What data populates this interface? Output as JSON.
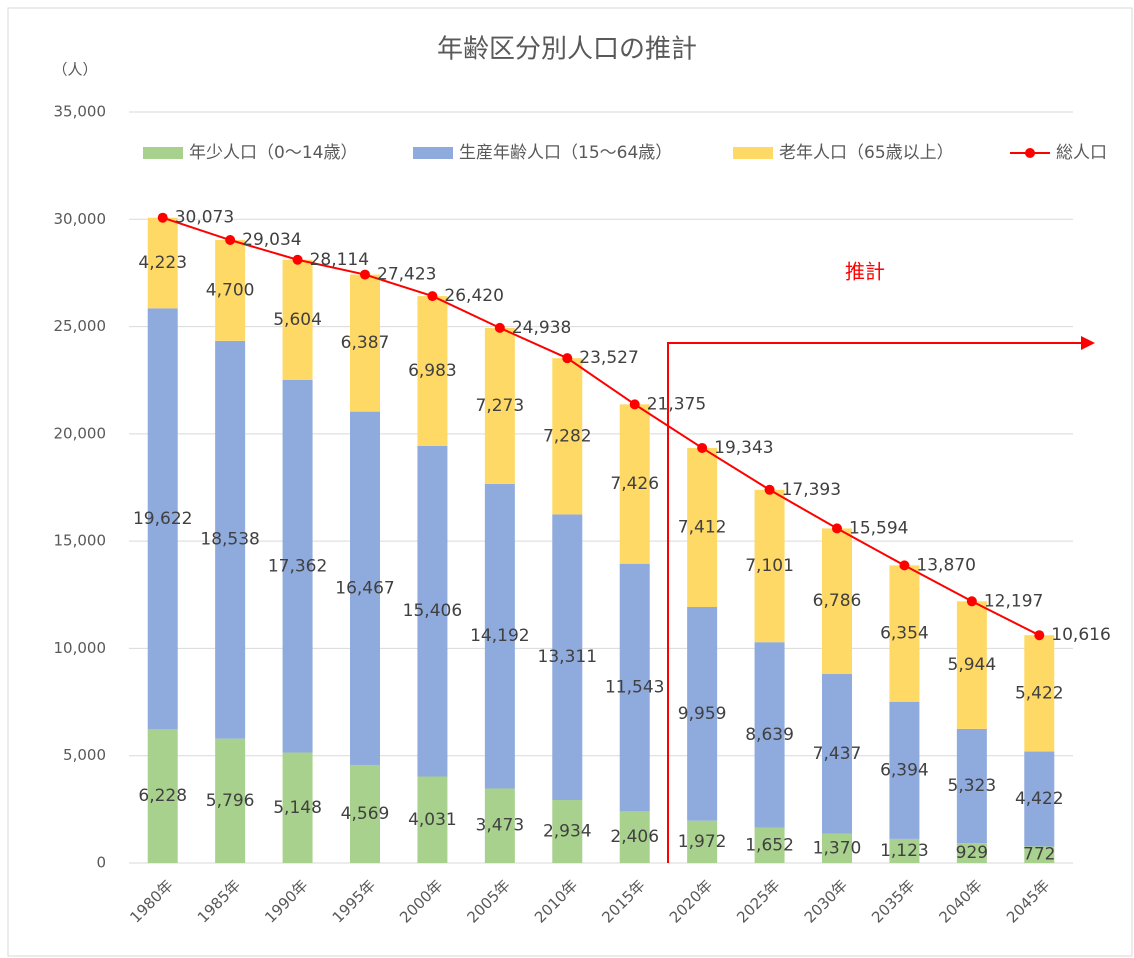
{
  "chart_data": {
    "type": "bar",
    "stacked": true,
    "title": "年齢区分別人口の推計",
    "y_label": "（人）",
    "annotation": "推計",
    "categories": [
      "1980年",
      "1985年",
      "1990年",
      "1995年",
      "2000年",
      "2005年",
      "2010年",
      "2015年",
      "2020年",
      "2025年",
      "2030年",
      "2035年",
      "2040年",
      "2045年"
    ],
    "ylim": [
      0,
      35000
    ],
    "yticks": [
      0,
      {
        "value": 5000,
        "label": "5,000"
      },
      {
        "value": 10000,
        "label": "10,000"
      },
      {
        "value": 15000,
        "label": "15,000"
      },
      {
        "value": 20000,
        "label": "20,000"
      },
      {
        "value": 25000,
        "label": "25,000"
      },
      {
        "value": 30000,
        "label": "30,000"
      },
      {
        "value": 35000,
        "label": "35,000"
      }
    ],
    "grid": true,
    "legend": "top",
    "series": [
      {
        "name": "年少人口（0～14歳）",
        "type": "bar",
        "color": "#a9d18e",
        "values": [
          6228,
          5796,
          5148,
          4569,
          4031,
          3473,
          2934,
          2406,
          1972,
          1652,
          1370,
          1123,
          929,
          772
        ],
        "value_labels": [
          "6,228",
          "5,796",
          "5,148",
          "4,569",
          "4,031",
          "3,473",
          "2,934",
          "2,406",
          "1,972",
          "1,652",
          "1,370",
          "1,123",
          "929",
          "772"
        ]
      },
      {
        "name": "生産年齢人口（15～64歳）",
        "type": "bar",
        "color": "#8faadc",
        "values": [
          19622,
          18538,
          17362,
          16467,
          15406,
          14192,
          13311,
          11543,
          9959,
          8639,
          7437,
          6394,
          5323,
          4422
        ],
        "value_labels": [
          "19,622",
          "18,538",
          "17,362",
          "16,467",
          "15,406",
          "14,192",
          "13,311",
          "11,543",
          "9,959",
          "8,639",
          "7,437",
          "6,394",
          "5,323",
          "4,422"
        ]
      },
      {
        "name": "老年人口（65歳以上）",
        "type": "bar",
        "color": "#ffd966",
        "values": [
          4223,
          4700,
          5604,
          6387,
          6983,
          7273,
          7282,
          7426,
          7412,
          7101,
          6786,
          6354,
          5944,
          5422
        ],
        "value_labels": [
          "4,223",
          "4,700",
          "5,604",
          "6,387",
          "6,983",
          "7,273",
          "7,282",
          "7,426",
          "7,412",
          "7,101",
          "6,786",
          "6,354",
          "5,944",
          "5,422"
        ]
      },
      {
        "name": "総人口",
        "type": "line",
        "color": "#ff0000",
        "values": [
          30073,
          29034,
          28114,
          27423,
          26420,
          24938,
          23527,
          21375,
          19343,
          17393,
          15594,
          13870,
          12197,
          10616
        ],
        "value_labels": [
          "30,073",
          "29,034",
          "28,114",
          "27,423",
          "26,420",
          "24,938",
          "23,527",
          "21,375",
          "19,343",
          "17,393",
          "15,594",
          "13,870",
          "12,197",
          "10,616"
        ]
      }
    ]
  }
}
